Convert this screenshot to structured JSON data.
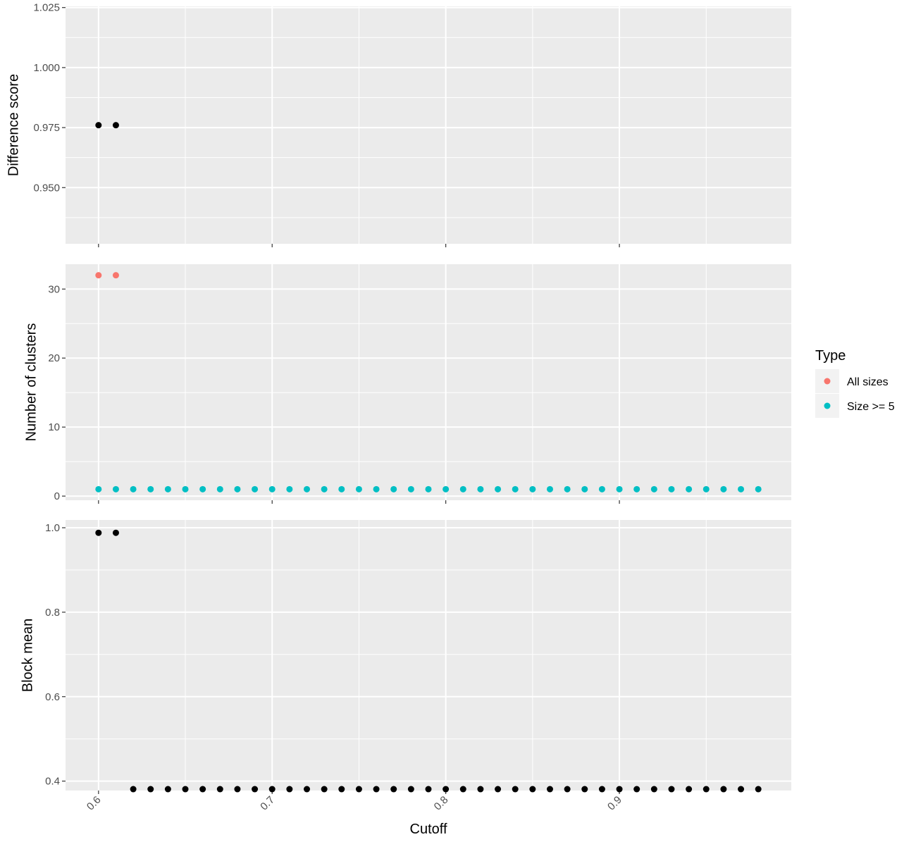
{
  "chart_data": {
    "type": "scatter",
    "layout": "faceted-vertical",
    "xlabel": "Cutoff",
    "xlim": [
      0.581,
      0.999
    ],
    "x_ticks": [
      0.6,
      0.7,
      0.8,
      0.9
    ],
    "x_tick_labels": [
      "0.6",
      "0.7",
      "0.8",
      "0.9"
    ],
    "x_tick_angle": -45,
    "grid": true,
    "background": "#ebebeb",
    "panels": [
      {
        "ylabel": "Difference score",
        "ylim": [
          0.9266,
          1.0255
        ],
        "y_ticks": [
          0.95,
          0.975,
          1.0,
          1.025
        ],
        "y_tick_labels": [
          "0.950",
          "0.975",
          "1.000",
          "1.025"
        ],
        "series": [
          {
            "color": "#000000",
            "points": [
              [
                0.6,
                0.976
              ],
              [
                0.61,
                0.976
              ]
            ]
          }
        ]
      },
      {
        "ylabel": "Number of clusters",
        "ylim": [
          -0.6,
          33.6
        ],
        "y_ticks": [
          0,
          10,
          20,
          30
        ],
        "y_tick_labels": [
          "0",
          "10",
          "20",
          "30"
        ],
        "series": [
          {
            "name": "All sizes",
            "color": "#F8766D",
            "points": [
              [
                0.6,
                32
              ],
              [
                0.61,
                32
              ]
            ]
          },
          {
            "name": "Size >= 5",
            "color": "#00BFC4",
            "x_range": [
              0.6,
              0.98
            ],
            "x_step": 0.01,
            "value": 1
          }
        ]
      },
      {
        "ylabel": "Block mean",
        "ylim": [
          0.3777,
          1.0184
        ],
        "y_ticks": [
          0.4,
          0.6,
          0.8,
          1.0
        ],
        "y_tick_labels": [
          "0.4",
          "0.6",
          "0.8",
          "1.0"
        ],
        "series": [
          {
            "color": "#000000",
            "points": [
              [
                0.6,
                0.988
              ],
              [
                0.61,
                0.988
              ]
            ]
          },
          {
            "color": "#000000",
            "x_range": [
              0.62,
              0.98
            ],
            "x_step": 0.01,
            "value": 0.381
          }
        ]
      }
    ],
    "legend": {
      "title": "Type",
      "position": "right",
      "entries": [
        {
          "label": "All sizes",
          "color": "#F8766D"
        },
        {
          "label": "Size >= 5",
          "color": "#00BFC4"
        }
      ]
    }
  }
}
